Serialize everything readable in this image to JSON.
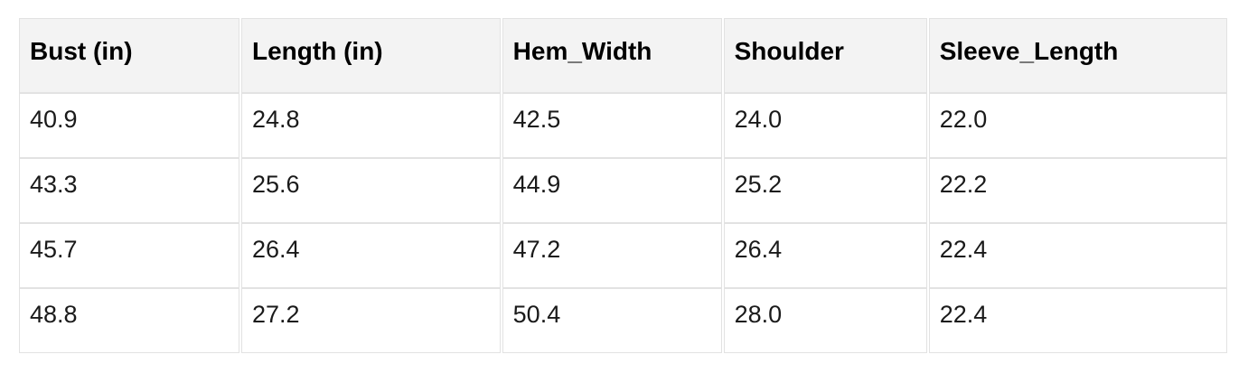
{
  "chart_data": {
    "type": "table",
    "title": "",
    "columns": [
      "Bust (in)",
      "Length (in)",
      "Hem_Width",
      "Shoulder",
      "Sleeve_Length"
    ],
    "rows": [
      [
        "40.9",
        "24.8",
        "42.5",
        "24.0",
        "22.0"
      ],
      [
        "43.3",
        "25.6",
        "44.9",
        "25.2",
        "22.2"
      ],
      [
        "45.7",
        "26.4",
        "47.2",
        "26.4",
        "22.4"
      ],
      [
        "48.8",
        "27.2",
        "50.4",
        "28.0",
        "22.4"
      ]
    ],
    "layout": {
      "header_position": "top",
      "grid": "on",
      "row_count": 4,
      "column_count": 5
    },
    "colors": {
      "page_background": "#ffffff",
      "header_background": "#f3f3f3",
      "cell_background": "#ffffff",
      "border": "#e2e2e2",
      "header_text": "#000000",
      "cell_text": "#1a1a1a"
    }
  }
}
